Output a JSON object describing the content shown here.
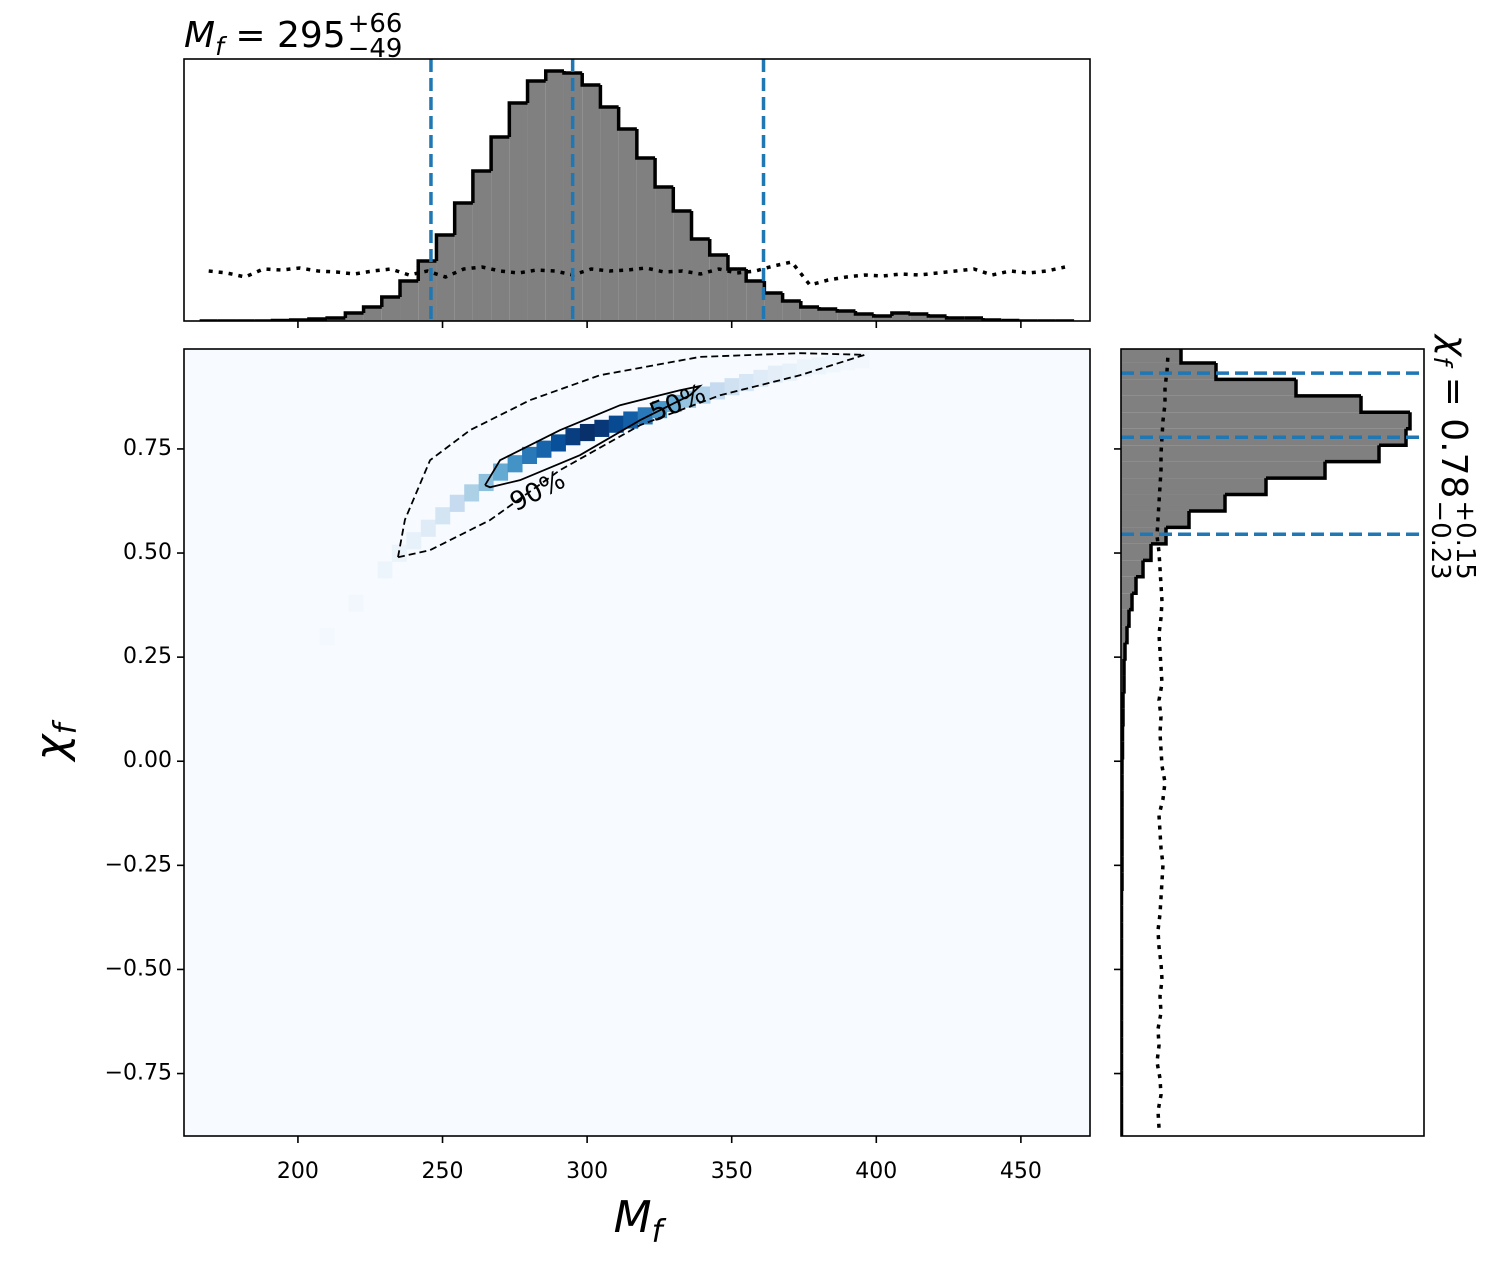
{
  "chart_data": [
    {
      "type": "histogram",
      "title": {
        "symbol": "M",
        "symbol_sub": "f",
        "text": " = 295",
        "sup": "+66",
        "sub": "−49"
      },
      "bins": [
        166.0,
        172.3,
        178.6,
        184.9,
        191.2,
        197.5,
        203.8,
        210.1,
        216.4,
        222.7,
        229.0,
        235.3,
        241.6,
        247.9,
        254.2,
        260.5,
        266.8,
        273.1,
        279.4,
        285.7,
        292.0,
        298.3,
        304.6,
        310.9,
        317.2,
        323.5,
        329.8,
        336.1,
        342.4,
        348.7,
        355.0,
        361.3,
        367.6,
        373.9,
        380.2,
        386.5,
        392.8,
        399.1,
        405.4,
        411.7,
        418.0,
        424.3,
        430.6,
        436.9,
        443.2,
        449.5,
        455.8,
        462.1,
        468.4
      ],
      "values": [
        0,
        0,
        0,
        0,
        0.5,
        1,
        2,
        3,
        8,
        14,
        24,
        40,
        60,
        86,
        118,
        150,
        184,
        218,
        240,
        250,
        248,
        236,
        214,
        192,
        163,
        134,
        110,
        82,
        66,
        52,
        40,
        28,
        20,
        14,
        12,
        10,
        7,
        5,
        8,
        7,
        5,
        3,
        3,
        1,
        0.5,
        0,
        0,
        0
      ],
      "color": "#808080",
      "prior": {
        "values": [
          50,
          48,
          44,
          52,
          51,
          53,
          50,
          49,
          47,
          50,
          52,
          46,
          50,
          44,
          52,
          54,
          50,
          48,
          51,
          50,
          46,
          52,
          50,
          51,
          53,
          49,
          50,
          47,
          52,
          48,
          50,
          55,
          59,
          36,
          41,
          44,
          46,
          45,
          47,
          46,
          48,
          50,
          52,
          46,
          50,
          48,
          50,
          54
        ]
      },
      "quantiles": [
        246,
        295,
        361
      ],
      "quantile_color": "#1f77b4",
      "xlim": [
        160.6,
        473.9
      ],
      "ylim": [
        0,
        262
      ],
      "xticks": [
        200,
        250,
        300,
        350,
        400,
        450
      ]
    },
    {
      "type": "heatmap",
      "xlabel": {
        "symbol": "M",
        "symbol_sub": "f"
      },
      "ylabel": {
        "symbol": "χ",
        "symbol_sub": "f"
      },
      "cells": {
        "x": [
          210,
          220,
          230,
          235,
          240,
          245,
          250,
          255,
          260,
          265,
          270,
          275,
          280,
          285,
          290,
          295,
          300,
          305,
          310,
          315,
          320,
          325,
          330,
          335,
          340,
          345,
          350,
          355,
          360,
          365,
          370,
          375,
          380,
          385,
          390,
          395
        ],
        "y": [
          0.3,
          0.38,
          0.46,
          0.5,
          0.53,
          0.56,
          0.59,
          0.62,
          0.645,
          0.67,
          0.695,
          0.715,
          0.735,
          0.75,
          0.765,
          0.78,
          0.79,
          0.8,
          0.81,
          0.82,
          0.83,
          0.845,
          0.86,
          0.87,
          0.88,
          0.89,
          0.9,
          0.91,
          0.92,
          0.93,
          0.935,
          0.945,
          0.95,
          0.955,
          0.96,
          0.965
        ],
        "values": [
          0.02,
          0.03,
          0.05,
          0.06,
          0.08,
          0.12,
          0.18,
          0.25,
          0.33,
          0.42,
          0.52,
          0.62,
          0.72,
          0.8,
          0.88,
          0.95,
          1.0,
          0.97,
          0.9,
          0.82,
          0.72,
          0.6,
          0.5,
          0.4,
          0.32,
          0.25,
          0.2,
          0.16,
          0.12,
          0.1,
          0.08,
          0.06,
          0.05,
          0.04,
          0.03,
          0.03
        ]
      },
      "cell_size": [
        5,
        0.04
      ],
      "colormap": [
        "#f7fbff",
        "#deebf7",
        "#c6dbef",
        "#9ecae1",
        "#6baed6",
        "#4292c6",
        "#2171b5",
        "#08519c",
        "#08306b"
      ],
      "contours": [
        {
          "label": "90%",
          "style": "dashed",
          "x": [
            234.6,
            237,
            245.7,
            259.5,
            280.2,
            304.4,
            339,
            373.6,
            396,
            373.6,
            346,
            318.3,
            290.6,
            266.4,
            245.7,
            234.6
          ],
          "y": [
            0.49,
            0.58,
            0.723,
            0.795,
            0.867,
            0.927,
            0.971,
            0.98,
            0.976,
            0.927,
            0.879,
            0.807,
            0.699,
            0.579,
            0.507,
            0.49
          ]
        },
        {
          "label": "50%",
          "style": "solid",
          "x": [
            264.7,
            269.9,
            290.6,
            311.4,
            332.1,
            339,
            335.6,
            318.3,
            297.5,
            276.8,
            266.4,
            264.7
          ],
          "y": [
            0.663,
            0.723,
            0.795,
            0.855,
            0.891,
            0.901,
            0.879,
            0.819,
            0.735,
            0.675,
            0.658,
            0.663
          ]
        }
      ],
      "xlim": [
        160.6,
        473.9
      ],
      "ylim": [
        -0.9,
        0.99
      ],
      "xticks": [
        200,
        250,
        300,
        350,
        400,
        450
      ],
      "yticks": [
        {
          "value": 0.75,
          "label": "0.75"
        },
        {
          "value": 0.5,
          "label": "0.50"
        },
        {
          "value": 0.25,
          "label": "0.25"
        },
        {
          "value": 0,
          "label": "0.00"
        },
        {
          "value": -0.25,
          "label": "−0.25"
        },
        {
          "value": -0.5,
          "label": "−0.50"
        },
        {
          "value": -0.75,
          "label": "−0.75"
        }
      ]
    },
    {
      "type": "histogram_horizontal",
      "title": {
        "symbol": "χ",
        "symbol_sub": "f",
        "text": " = 0.78",
        "sup": "+0.15",
        "sub": "−0.23"
      },
      "bins": [
        -0.9,
        -0.8605,
        -0.821,
        -0.7815,
        -0.742,
        -0.7025,
        -0.663,
        -0.6235,
        -0.584,
        -0.5445,
        -0.505,
        -0.4655,
        -0.426,
        -0.3865,
        -0.347,
        -0.3075,
        -0.268,
        -0.2285,
        -0.189,
        -0.1495,
        -0.11,
        -0.0705,
        -0.031,
        0.0085,
        0.048,
        0.0875,
        0.127,
        0.1665,
        0.206,
        0.2455,
        0.285,
        0.3245,
        0.364,
        0.4035,
        0.443,
        0.4825,
        0.522,
        0.5615,
        0.601,
        0.6405,
        0.68,
        0.7195,
        0.759,
        0.7985,
        0.838,
        0.8775,
        0.917,
        0.9565,
        0.996
      ],
      "values": [
        0.5,
        0.5,
        0.5,
        0.5,
        0.5,
        0.5,
        0.5,
        0.5,
        0.5,
        0.5,
        0.5,
        0.5,
        0.5,
        0.5,
        0.5,
        1,
        1,
        1,
        1,
        1,
        1,
        1,
        1,
        1.5,
        1.5,
        2,
        2,
        3,
        3,
        4,
        6,
        8,
        11,
        15,
        22,
        30,
        45,
        68,
        104,
        145,
        204,
        258,
        285,
        289,
        240,
        175,
        95,
        60
      ],
      "color": "#808080",
      "prior": {
        "values": [
          38,
          37,
          40,
          39,
          36,
          38,
          37,
          40,
          39,
          41,
          40,
          38,
          37,
          39,
          40,
          41,
          42,
          40,
          39,
          38,
          42,
          44,
          41,
          40,
          39,
          40,
          38,
          41,
          40,
          39,
          38,
          40,
          41,
          40,
          39,
          38,
          36,
          37,
          38,
          39,
          40,
          40,
          41,
          42,
          44,
          44,
          46,
          47
        ]
      },
      "quantiles": [
        0.545,
        0.778,
        0.932
      ],
      "quantile_color": "#1f77b4",
      "xlim": [
        0,
        303
      ],
      "ylim": [
        -0.9,
        0.99
      ]
    }
  ]
}
